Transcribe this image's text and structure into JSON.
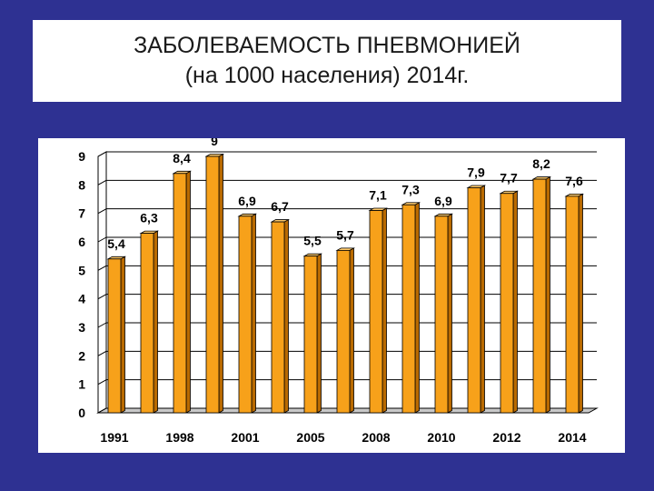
{
  "slide": {
    "title_line1": "ЗАБОЛЕВАЕМОСТЬ ПНЕВМОНИЕЙ",
    "title_line2": "(на 1000 населения) 2014г."
  },
  "colors": {
    "background": "#2e3192",
    "bar_front": "#f7a11a",
    "bar_side": "#b96a00",
    "bar_top": "#fcc86a"
  },
  "chart_data": {
    "type": "bar",
    "title": "",
    "xlabel": "",
    "ylabel": "",
    "ylim": [
      0,
      9
    ],
    "yticks": [
      0,
      1,
      2,
      3,
      4,
      5,
      6,
      7,
      8,
      9
    ],
    "grid": true,
    "legend": "none",
    "values": [
      5.4,
      6.3,
      8.4,
      9,
      6.9,
      6.7,
      5.5,
      5.7,
      7.1,
      7.3,
      6.9,
      7.9,
      7.7,
      8.2,
      7.6
    ],
    "value_labels": [
      "5,4",
      "6,3",
      "8,4",
      "9",
      "6,9",
      "6,7",
      "5,5",
      "5,7",
      "7,1",
      "7,3",
      "6,9",
      "7,9",
      "7,7",
      "8,2",
      "7,6"
    ],
    "x_tick_labels": [
      "1991",
      "1998",
      "2001",
      "2005",
      "2008",
      "2010",
      "2012",
      "2014"
    ]
  }
}
